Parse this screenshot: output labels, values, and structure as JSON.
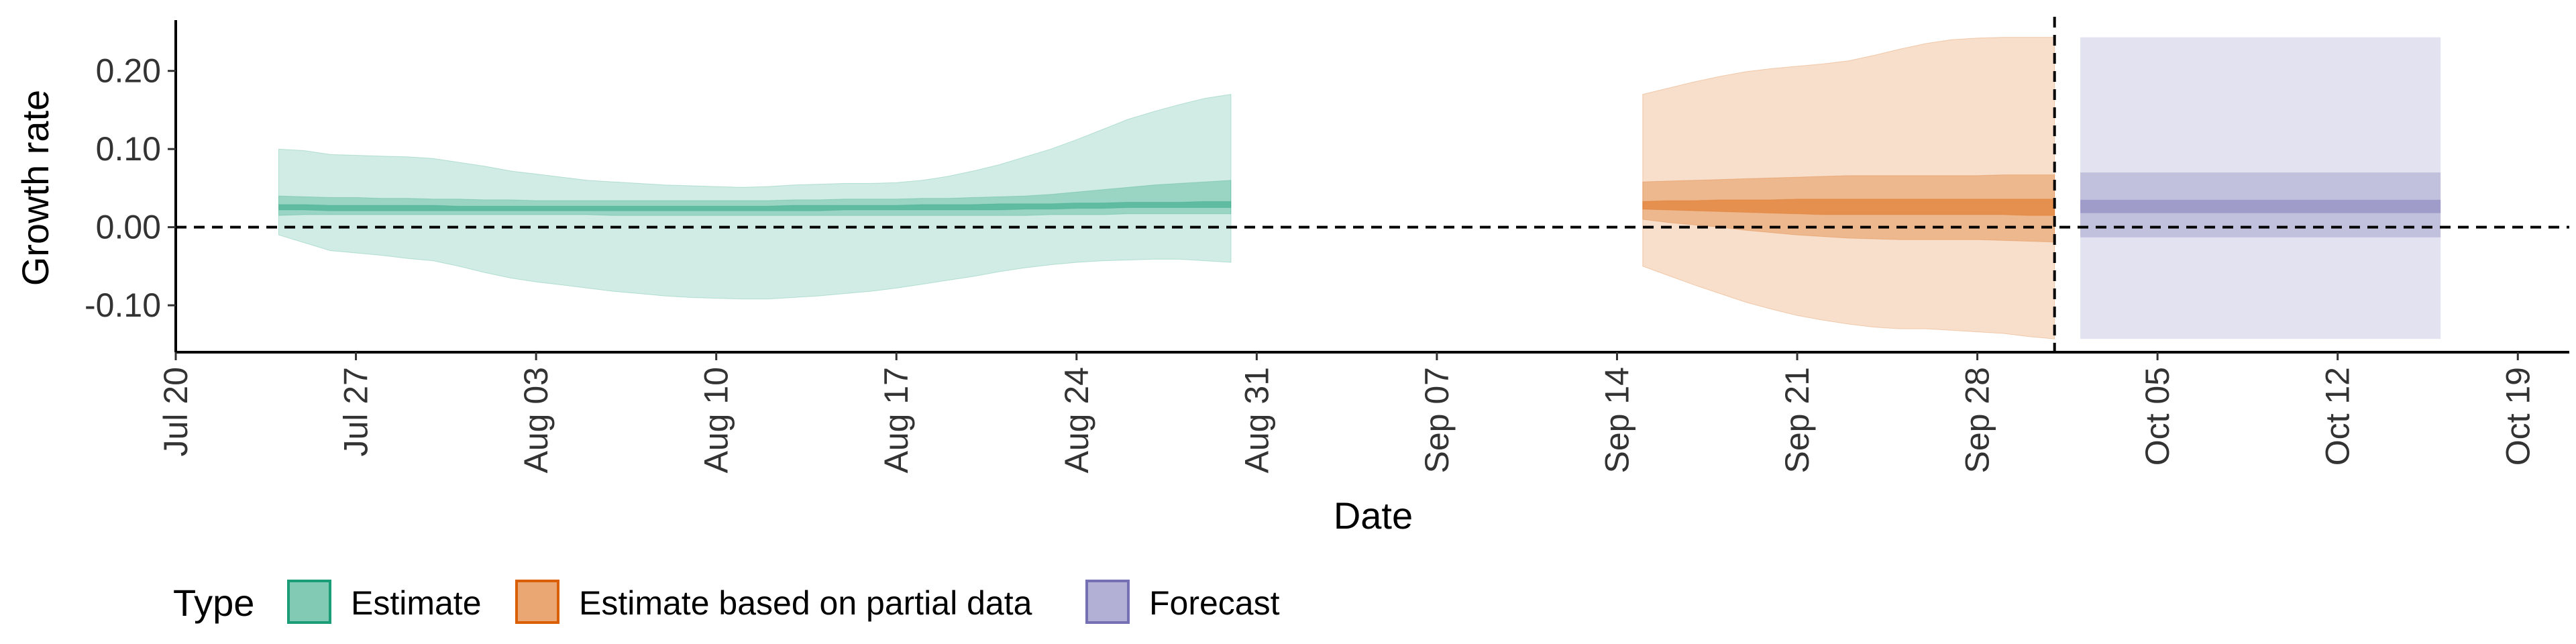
{
  "chart_data": {
    "type": "area",
    "title": "",
    "xlabel": "Date",
    "ylabel": "Growth rate",
    "grid": false,
    "legend_position": "bottom-left",
    "x_ticks": [
      "Jul 20",
      "Jul 27",
      "Aug 03",
      "Aug 10",
      "Aug 17",
      "Aug 24",
      "Aug 31",
      "Sep 07",
      "Sep 14",
      "Sep 21",
      "Sep 28",
      "Oct 05",
      "Oct 12",
      "Oct 19"
    ],
    "y_ticks": [
      0.2,
      0.1,
      0.0,
      -0.1
    ],
    "y_tick_labels": [
      "0.20",
      "0.10",
      "0.00",
      "-0.10"
    ],
    "xlim": [
      "2020-07-20",
      "2020-10-21"
    ],
    "ylim": [
      -0.16,
      0.265
    ],
    "hline": 0,
    "vline": "2020-10-01",
    "legend": {
      "title": "Type",
      "items": [
        {
          "label": "Estimate",
          "color": "#1b9e77"
        },
        {
          "label": "Estimate based on partial data",
          "color": "#d95f02"
        },
        {
          "label": "Forecast",
          "color": "#7570b3"
        }
      ]
    },
    "series": [
      {
        "name": "Estimate",
        "color": "#1b9e77",
        "start": "2020-07-24",
        "data": [
          [
            0.1,
            0.04,
            0.029,
            0.022,
            0.015,
            -0.01
          ],
          [
            0.098,
            0.039,
            0.029,
            0.022,
            0.016,
            -0.02
          ],
          [
            0.093,
            0.038,
            0.028,
            0.021,
            0.016,
            -0.03
          ],
          [
            0.092,
            0.038,
            0.028,
            0.021,
            0.016,
            -0.033
          ],
          [
            0.091,
            0.037,
            0.028,
            0.021,
            0.016,
            -0.036
          ],
          [
            0.09,
            0.037,
            0.028,
            0.021,
            0.016,
            -0.04
          ],
          [
            0.088,
            0.036,
            0.028,
            0.021,
            0.016,
            -0.043
          ],
          [
            0.083,
            0.036,
            0.027,
            0.021,
            0.016,
            -0.05
          ],
          [
            0.078,
            0.035,
            0.027,
            0.021,
            0.016,
            -0.058
          ],
          [
            0.072,
            0.035,
            0.027,
            0.021,
            0.016,
            -0.065
          ],
          [
            0.068,
            0.034,
            0.027,
            0.021,
            0.016,
            -0.07
          ],
          [
            0.064,
            0.034,
            0.027,
            0.021,
            0.016,
            -0.074
          ],
          [
            0.06,
            0.034,
            0.027,
            0.021,
            0.016,
            -0.078
          ],
          [
            0.058,
            0.034,
            0.027,
            0.021,
            0.015,
            -0.082
          ],
          [
            0.056,
            0.034,
            0.027,
            0.021,
            0.015,
            -0.085
          ],
          [
            0.054,
            0.034,
            0.027,
            0.021,
            0.015,
            -0.088
          ],
          [
            0.053,
            0.034,
            0.027,
            0.021,
            0.015,
            -0.09
          ],
          [
            0.052,
            0.034,
            0.027,
            0.021,
            0.015,
            -0.091
          ],
          [
            0.051,
            0.034,
            0.027,
            0.021,
            0.015,
            -0.092
          ],
          [
            0.052,
            0.034,
            0.027,
            0.021,
            0.015,
            -0.092
          ],
          [
            0.054,
            0.035,
            0.028,
            0.021,
            0.015,
            -0.09
          ],
          [
            0.055,
            0.035,
            0.028,
            0.021,
            0.015,
            -0.088
          ],
          [
            0.056,
            0.036,
            0.028,
            0.022,
            0.015,
            -0.085
          ],
          [
            0.056,
            0.036,
            0.028,
            0.022,
            0.015,
            -0.082
          ],
          [
            0.057,
            0.036,
            0.028,
            0.022,
            0.015,
            -0.078
          ],
          [
            0.06,
            0.037,
            0.029,
            0.022,
            0.015,
            -0.073
          ],
          [
            0.065,
            0.037,
            0.029,
            0.022,
            0.015,
            -0.068
          ],
          [
            0.072,
            0.038,
            0.029,
            0.022,
            0.015,
            -0.063
          ],
          [
            0.08,
            0.039,
            0.03,
            0.022,
            0.015,
            -0.057
          ],
          [
            0.09,
            0.04,
            0.03,
            0.023,
            0.015,
            -0.052
          ],
          [
            0.1,
            0.042,
            0.03,
            0.023,
            0.016,
            -0.048
          ],
          [
            0.112,
            0.045,
            0.031,
            0.024,
            0.016,
            -0.045
          ],
          [
            0.125,
            0.048,
            0.031,
            0.024,
            0.016,
            -0.043
          ],
          [
            0.138,
            0.051,
            0.032,
            0.025,
            0.017,
            -0.042
          ],
          [
            0.148,
            0.054,
            0.032,
            0.025,
            0.017,
            -0.041
          ],
          [
            0.157,
            0.056,
            0.032,
            0.025,
            0.017,
            -0.041
          ],
          [
            0.165,
            0.058,
            0.033,
            0.025,
            0.017,
            -0.043
          ],
          [
            0.17,
            0.06,
            0.033,
            0.025,
            0.017,
            -0.045
          ]
        ]
      },
      {
        "name": "Estimate based on partial data",
        "color": "#d95f02",
        "start": "2020-09-15",
        "data": [
          [
            0.17,
            0.058,
            0.033,
            0.023,
            0.01,
            -0.05
          ],
          [
            0.178,
            0.059,
            0.034,
            0.022,
            0.006,
            -0.062
          ],
          [
            0.186,
            0.06,
            0.034,
            0.021,
            0.003,
            -0.074
          ],
          [
            0.193,
            0.061,
            0.035,
            0.02,
            0.0,
            -0.085
          ],
          [
            0.199,
            0.062,
            0.035,
            0.019,
            -0.004,
            -0.096
          ],
          [
            0.203,
            0.063,
            0.035,
            0.018,
            -0.007,
            -0.105
          ],
          [
            0.206,
            0.064,
            0.036,
            0.017,
            -0.01,
            -0.113
          ],
          [
            0.209,
            0.065,
            0.036,
            0.016,
            -0.012,
            -0.119
          ],
          [
            0.213,
            0.066,
            0.036,
            0.016,
            -0.014,
            -0.124
          ],
          [
            0.22,
            0.066,
            0.036,
            0.016,
            -0.015,
            -0.128
          ],
          [
            0.228,
            0.066,
            0.036,
            0.016,
            -0.016,
            -0.13
          ],
          [
            0.235,
            0.066,
            0.036,
            0.016,
            -0.016,
            -0.13
          ],
          [
            0.24,
            0.066,
            0.036,
            0.016,
            -0.016,
            -0.132
          ],
          [
            0.242,
            0.066,
            0.036,
            0.016,
            -0.016,
            -0.134
          ],
          [
            0.243,
            0.067,
            0.036,
            0.016,
            -0.017,
            -0.136
          ],
          [
            0.243,
            0.067,
            0.036,
            0.015,
            -0.018,
            -0.14
          ],
          [
            0.243,
            0.067,
            0.036,
            0.015,
            -0.019,
            -0.143
          ]
        ]
      },
      {
        "name": "Forecast",
        "color": "#7570b3",
        "start": "2020-10-02",
        "end": "2020-10-16",
        "band": [
          0.243,
          0.07,
          0.035,
          0.018,
          -0.013,
          -0.143
        ]
      }
    ]
  }
}
